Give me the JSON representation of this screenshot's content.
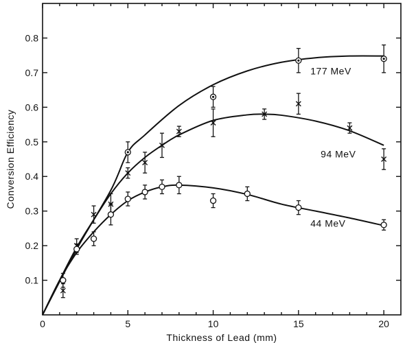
{
  "chart_data": {
    "type": "scatter",
    "title": "",
    "xlabel": "Thickness of Lead (mm)",
    "ylabel": "Conversion Efficiency",
    "xlim": [
      0,
      21
    ],
    "ylim": [
      0,
      0.9
    ],
    "x_ticks": [
      0,
      5,
      10,
      15,
      20
    ],
    "x_tick_labels": [
      "0",
      "5",
      "10",
      "15",
      "20"
    ],
    "y_ticks": [
      0.1,
      0.2,
      0.3,
      0.4,
      0.5,
      0.6,
      0.7,
      0.8
    ],
    "y_tick_labels": [
      "0.1",
      "0.2",
      "0.3",
      "0.4",
      "0.5",
      "0.6",
      "0.7",
      "0.8"
    ],
    "grid": false,
    "series": [
      {
        "name": "177 MeV",
        "marker": "circle-dot",
        "x": [
          5,
          10,
          15,
          20
        ],
        "y": [
          0.47,
          0.63,
          0.735,
          0.74
        ],
        "err": [
          0.03,
          0.03,
          0.035,
          0.04
        ],
        "fit_x": [
          0,
          2,
          4,
          5,
          6,
          8,
          10,
          12,
          14,
          16,
          18,
          20
        ],
        "fit_y": [
          0,
          0.19,
          0.36,
          0.47,
          0.52,
          0.605,
          0.665,
          0.705,
          0.73,
          0.743,
          0.748,
          0.748
        ]
      },
      {
        "name": "94 MeV",
        "marker": "x",
        "x": [
          1.2,
          2,
          3,
          4,
          5,
          6,
          7,
          8,
          10,
          13,
          15,
          18,
          20
        ],
        "y": [
          0.07,
          0.2,
          0.29,
          0.32,
          0.41,
          0.44,
          0.49,
          0.53,
          0.555,
          0.58,
          0.61,
          0.54,
          0.45
        ],
        "err": [
          0.02,
          0.02,
          0.025,
          0.03,
          0.015,
          0.03,
          0.035,
          0.015,
          0.04,
          0.015,
          0.03,
          0.015,
          0.03
        ],
        "fit_x": [
          0,
          1,
          2,
          3,
          4,
          5,
          6,
          7,
          8,
          10,
          12,
          13,
          14,
          16,
          18,
          20
        ],
        "fit_y": [
          0,
          0.1,
          0.195,
          0.275,
          0.35,
          0.41,
          0.455,
          0.49,
          0.52,
          0.562,
          0.578,
          0.58,
          0.577,
          0.56,
          0.532,
          0.49
        ]
      },
      {
        "name": "44 MeV",
        "marker": "circle",
        "x": [
          1.2,
          2,
          3,
          4,
          5,
          6,
          7,
          8,
          10,
          12,
          15,
          20
        ],
        "y": [
          0.1,
          0.19,
          0.22,
          0.29,
          0.335,
          0.355,
          0.37,
          0.375,
          0.33,
          0.35,
          0.31,
          0.26
        ],
        "err": [
          0.02,
          0.015,
          0.02,
          0.03,
          0.02,
          0.02,
          0.02,
          0.025,
          0.02,
          0.02,
          0.02,
          0.015
        ],
        "fit_x": [
          0,
          1,
          2,
          3,
          4,
          5,
          6,
          7,
          8,
          10,
          12,
          14,
          16,
          18,
          20
        ],
        "fit_y": [
          0,
          0.1,
          0.18,
          0.24,
          0.29,
          0.33,
          0.355,
          0.37,
          0.375,
          0.367,
          0.348,
          0.32,
          0.3,
          0.28,
          0.258
        ]
      }
    ]
  }
}
